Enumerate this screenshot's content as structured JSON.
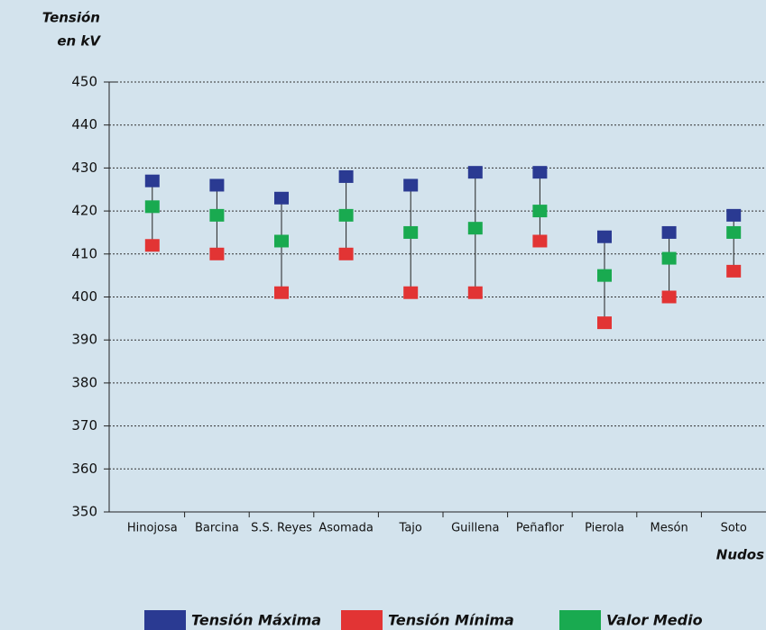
{
  "chart_data": {
    "type": "range",
    "y_label": [
      "Tensión",
      "en kV"
    ],
    "x_label": "Nudos",
    "categories": [
      "Hinojosa",
      "Barcina",
      "S.S. Reyes",
      "Asomada",
      "Tajo",
      "Guillena",
      "Peñaflor",
      "Pierola",
      "Mesón",
      "Soto"
    ],
    "series": [
      {
        "name": "Tensión Máxima",
        "color": "#2a3a92",
        "values": [
          427,
          426,
          423,
          428,
          426,
          429,
          429,
          414,
          415,
          419
        ]
      },
      {
        "name": "Tensión Mínima",
        "color": "#e23434",
        "values": [
          412,
          410,
          401,
          410,
          401,
          401,
          413,
          394,
          400,
          406
        ]
      },
      {
        "name": "Valor Medio",
        "color": "#19aa50",
        "values": [
          421,
          419,
          413,
          419,
          415,
          416,
          420,
          405,
          409,
          415
        ]
      }
    ],
    "ylim": [
      350,
      450
    ],
    "yticks": [
      350,
      360,
      370,
      380,
      390,
      400,
      410,
      420,
      430,
      440,
      450
    ],
    "grid": true
  }
}
